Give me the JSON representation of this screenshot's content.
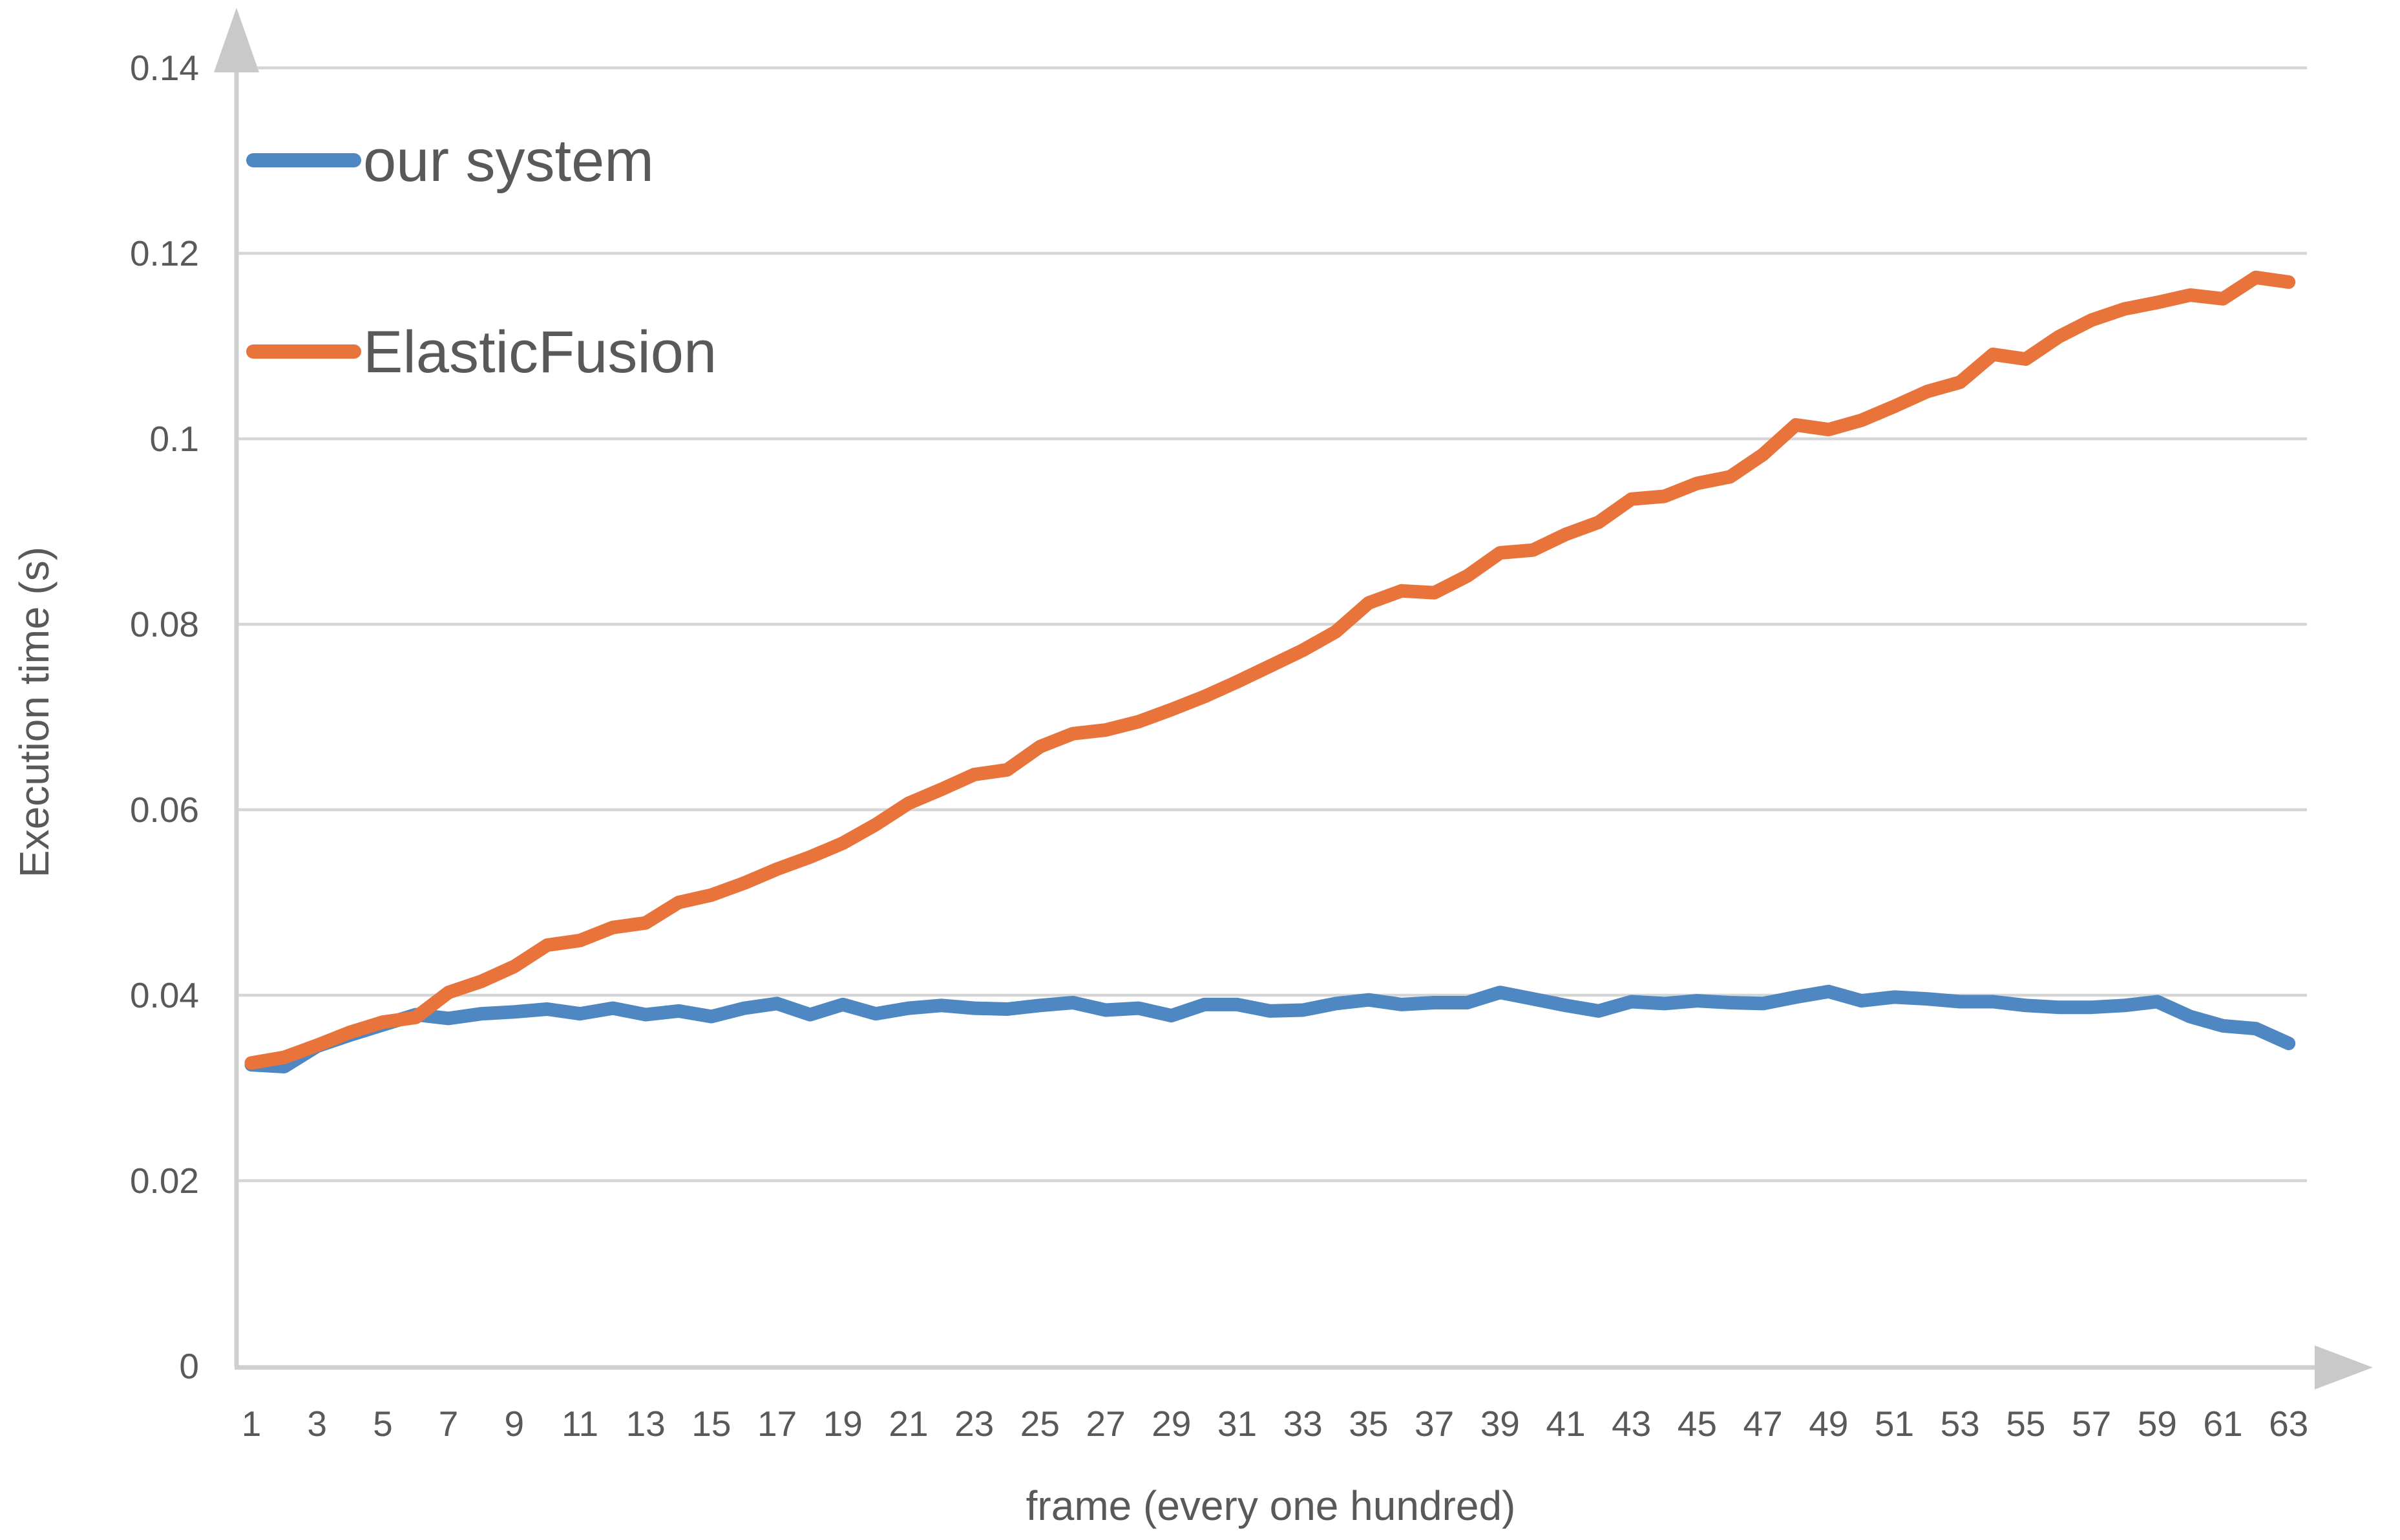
{
  "chart_data": {
    "type": "line",
    "title": "",
    "xlabel": "frame (every one hundred)",
    "ylabel": "Execution time (s)",
    "x": [
      1,
      2,
      3,
      4,
      5,
      6,
      7,
      8,
      9,
      10,
      11,
      12,
      13,
      14,
      15,
      16,
      17,
      18,
      19,
      20,
      21,
      22,
      23,
      24,
      25,
      26,
      27,
      28,
      29,
      30,
      31,
      32,
      33,
      34,
      35,
      36,
      37,
      38,
      39,
      40,
      41,
      42,
      43,
      44,
      45,
      46,
      47,
      48,
      49,
      50,
      51,
      52,
      53,
      54,
      55,
      56,
      57,
      58,
      59,
      60,
      61,
      62,
      63
    ],
    "xtick_labels": [
      "1",
      "3",
      "5",
      "7",
      "9",
      "11",
      "13",
      "15",
      "17",
      "19",
      "21",
      "23",
      "25",
      "27",
      "29",
      "31",
      "33",
      "35",
      "37",
      "39",
      "41",
      "43",
      "45",
      "47",
      "49",
      "51",
      "53",
      "55",
      "57",
      "59",
      "61",
      "63"
    ],
    "ytick_values": [
      0,
      0.02,
      0.04,
      0.06,
      0.08,
      0.1,
      0.12,
      0.14
    ],
    "ytick_labels": [
      "0",
      "0.02",
      "0.04",
      "0.06",
      "0.08",
      "0.1",
      "0.12",
      "0.14"
    ],
    "ylim": [
      0,
      0.14
    ],
    "grid": "horizontal",
    "legend_position": "top-left-inside",
    "series": [
      {
        "name": "our system",
        "color": "#4E87C1",
        "values": [
          0.0325,
          0.0323,
          0.0345,
          0.0357,
          0.0368,
          0.0379,
          0.0375,
          0.038,
          0.0382,
          0.0385,
          0.038,
          0.0386,
          0.0379,
          0.0383,
          0.0377,
          0.0386,
          0.0391,
          0.0379,
          0.039,
          0.038,
          0.0386,
          0.0389,
          0.0386,
          0.0385,
          0.0389,
          0.0392,
          0.0384,
          0.0386,
          0.0378,
          0.039,
          0.039,
          0.0383,
          0.0384,
          0.0391,
          0.0395,
          0.039,
          0.0392,
          0.0392,
          0.0403,
          0.0396,
          0.0389,
          0.0383,
          0.0393,
          0.0391,
          0.0394,
          0.0392,
          0.0391,
          0.0398,
          0.0404,
          0.0394,
          0.0398,
          0.0396,
          0.0393,
          0.0393,
          0.0389,
          0.0387,
          0.0387,
          0.0389,
          0.0393,
          0.0377,
          0.0367,
          0.0364,
          0.0348
        ]
      },
      {
        "name": "ElasticFusion",
        "color": "#E8743B",
        "values": [
          0.0327,
          0.0333,
          0.0346,
          0.036,
          0.0371,
          0.0376,
          0.0403,
          0.0415,
          0.0431,
          0.0454,
          0.0459,
          0.0473,
          0.0478,
          0.05,
          0.0508,
          0.0521,
          0.0536,
          0.0549,
          0.0564,
          0.0584,
          0.0607,
          0.0622,
          0.0638,
          0.0643,
          0.0668,
          0.0682,
          0.0686,
          0.0695,
          0.0708,
          0.0722,
          0.0738,
          0.0755,
          0.0772,
          0.0792,
          0.0823,
          0.0836,
          0.0834,
          0.0852,
          0.0877,
          0.088,
          0.0897,
          0.091,
          0.0935,
          0.0938,
          0.0952,
          0.0959,
          0.0983,
          0.1015,
          0.101,
          0.102,
          0.1035,
          0.1051,
          0.1061,
          0.1091,
          0.1086,
          0.111,
          0.1128,
          0.114,
          0.1147,
          0.1155,
          0.1151,
          0.1174,
          0.1169
        ]
      }
    ],
    "colors": {
      "grid": "#D6D6D6",
      "axis": "#CFCFCF",
      "arrow": "#C9C9C9",
      "text": "#595959",
      "background": "#FFFFFF"
    }
  }
}
